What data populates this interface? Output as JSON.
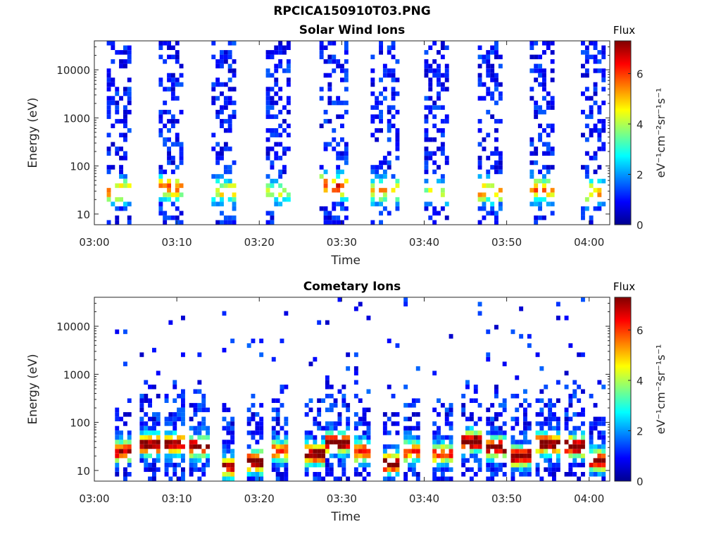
{
  "figure_title": "RPCICA150910T03.PNG",
  "colorbar_scale": {
    "stops": [
      "#00008f",
      "#0000ff",
      "#0080ff",
      "#00ffff",
      "#80ff80",
      "#ffff00",
      "#ff8000",
      "#ff0000",
      "#800000"
    ]
  },
  "chart_data": [
    {
      "type": "heatmap",
      "title": "Solar Wind Ions",
      "xlabel": "Time",
      "ylabel": "Energy (eV)",
      "x_ticks": [
        "03:00",
        "03:10",
        "03:20",
        "03:30",
        "03:40",
        "03:50",
        "04:00"
      ],
      "x_tick_minutes": [
        0,
        10,
        20,
        30,
        40,
        50,
        60
      ],
      "xlim_minutes": [
        0,
        62.5
      ],
      "y_scale": "log",
      "y_ticks": [
        "10",
        "100",
        "1000",
        "10000"
      ],
      "y_tick_values": [
        10,
        100,
        1000,
        10000
      ],
      "ylim": [
        6,
        40000
      ],
      "colorbar": {
        "title": "Flux",
        "label": "eV⁻¹cm⁻²sr⁻¹s⁻¹",
        "ticks": [
          "0",
          "2",
          "4",
          "6"
        ],
        "tick_values": [
          0,
          2,
          4,
          6
        ],
        "range": [
          0,
          7.3
        ]
      },
      "grid": false,
      "bursts": [
        {
          "start_min": 1.5,
          "end_min": 4.5,
          "peak_energy_ev": 30,
          "peak_flux": 4.5
        },
        {
          "start_min": 7.8,
          "end_min": 10.8,
          "peak_energy_ev": 35,
          "peak_flux": 4.8
        },
        {
          "start_min": 14.2,
          "end_min": 17.2,
          "peak_energy_ev": 30,
          "peak_flux": 3.8
        },
        {
          "start_min": 20.8,
          "end_min": 23.8,
          "peak_energy_ev": 30,
          "peak_flux": 3.2
        },
        {
          "start_min": 27.3,
          "end_min": 30.5,
          "peak_energy_ev": 38,
          "peak_flux": 5.2
        },
        {
          "start_min": 33.5,
          "end_min": 36.8,
          "peak_energy_ev": 30,
          "peak_flux": 4.0
        },
        {
          "start_min": 40.0,
          "end_min": 43.0,
          "peak_energy_ev": 30,
          "peak_flux": 3.0
        },
        {
          "start_min": 46.5,
          "end_min": 49.5,
          "peak_energy_ev": 30,
          "peak_flux": 4.5
        },
        {
          "start_min": 52.8,
          "end_min": 55.8,
          "peak_energy_ev": 32,
          "peak_flux": 4.6
        },
        {
          "start_min": 59.0,
          "end_min": 62.0,
          "peak_energy_ev": 28,
          "peak_flux": 4.2
        }
      ]
    },
    {
      "type": "heatmap",
      "title": "Cometary Ions",
      "xlabel": "Time",
      "ylabel": "Energy (eV)",
      "x_ticks": [
        "03:00",
        "03:10",
        "03:20",
        "03:30",
        "03:40",
        "03:50",
        "04:00"
      ],
      "x_tick_minutes": [
        0,
        10,
        20,
        30,
        40,
        50,
        60
      ],
      "xlim_minutes": [
        0,
        62.5
      ],
      "y_scale": "log",
      "y_ticks": [
        "10",
        "100",
        "1000",
        "10000"
      ],
      "y_tick_values": [
        10,
        100,
        1000,
        10000
      ],
      "ylim": [
        6,
        40000
      ],
      "colorbar": {
        "title": "Flux",
        "label": "eV⁻¹cm⁻²sr⁻¹s⁻¹",
        "ticks": [
          "0",
          "2",
          "4",
          "6"
        ],
        "tick_values": [
          0,
          2,
          4,
          6
        ],
        "range": [
          0,
          7.3
        ]
      },
      "grid": false,
      "bursts": [
        {
          "start_min": 2.5,
          "end_min": 4.5,
          "peak_energy_ev": 25,
          "peak_flux": 6.0
        },
        {
          "start_min": 5.5,
          "end_min": 8.0,
          "peak_energy_ev": 35,
          "peak_flux": 6.5
        },
        {
          "start_min": 8.5,
          "end_min": 11.0,
          "peak_energy_ev": 35,
          "peak_flux": 6.2
        },
        {
          "start_min": 11.5,
          "end_min": 14.0,
          "peak_energy_ev": 32,
          "peak_flux": 6.4
        },
        {
          "start_min": 15.5,
          "end_min": 17.0,
          "peak_energy_ev": 12,
          "peak_flux": 6.0
        },
        {
          "start_min": 18.5,
          "end_min": 20.5,
          "peak_energy_ev": 15,
          "peak_flux": 7.0
        },
        {
          "start_min": 21.5,
          "end_min": 23.5,
          "peak_energy_ev": 25,
          "peak_flux": 5.0
        },
        {
          "start_min": 25.5,
          "end_min": 28.0,
          "peak_energy_ev": 22,
          "peak_flux": 6.6
        },
        {
          "start_min": 28.0,
          "end_min": 31.0,
          "peak_energy_ev": 38,
          "peak_flux": 6.8
        },
        {
          "start_min": 31.5,
          "end_min": 33.5,
          "peak_energy_ev": 25,
          "peak_flux": 5.5
        },
        {
          "start_min": 35.0,
          "end_min": 37.0,
          "peak_energy_ev": 14,
          "peak_flux": 6.8
        },
        {
          "start_min": 37.5,
          "end_min": 39.5,
          "peak_energy_ev": 25,
          "peak_flux": 5.2
        },
        {
          "start_min": 41.0,
          "end_min": 43.5,
          "peak_energy_ev": 22,
          "peak_flux": 5.0
        },
        {
          "start_min": 44.5,
          "end_min": 47.0,
          "peak_energy_ev": 40,
          "peak_flux": 6.9
        },
        {
          "start_min": 47.5,
          "end_min": 50.0,
          "peak_energy_ev": 30,
          "peak_flux": 6.6
        },
        {
          "start_min": 50.5,
          "end_min": 53.0,
          "peak_energy_ev": 20,
          "peak_flux": 6.7
        },
        {
          "start_min": 53.5,
          "end_min": 56.5,
          "peak_energy_ev": 36,
          "peak_flux": 6.6
        },
        {
          "start_min": 57.0,
          "end_min": 59.5,
          "peak_energy_ev": 32,
          "peak_flux": 6.8
        },
        {
          "start_min": 60.0,
          "end_min": 62.0,
          "peak_energy_ev": 16,
          "peak_flux": 6.5
        }
      ]
    }
  ]
}
